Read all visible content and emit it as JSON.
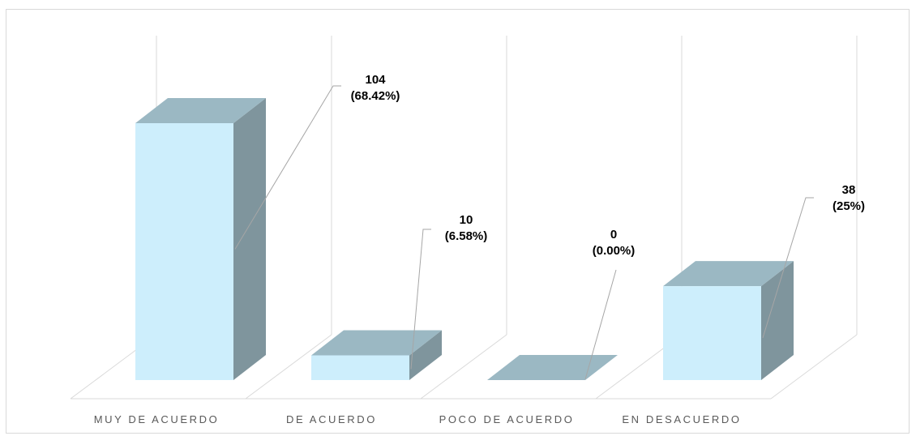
{
  "chart_data": {
    "type": "bar",
    "style": "3d-column",
    "categories": [
      "MUY DE ACUERDO",
      "DE ACUERDO",
      "POCO DE ACUERDO",
      "EN DESACUERDO"
    ],
    "values": [
      104,
      10,
      0,
      38
    ],
    "percent_labels": [
      "(68.42%)",
      "(6.58%)",
      "(0.00%)",
      "(25%)"
    ],
    "title": "",
    "xlabel": "",
    "ylabel": "",
    "legend": "none",
    "grid": "vertical walls between categories",
    "colors": {
      "front": "#cdeefc",
      "top": "#9bb8c3",
      "side": "#7f959d",
      "wall": "#d9d9d9",
      "leader": "#a6a6a6"
    }
  }
}
